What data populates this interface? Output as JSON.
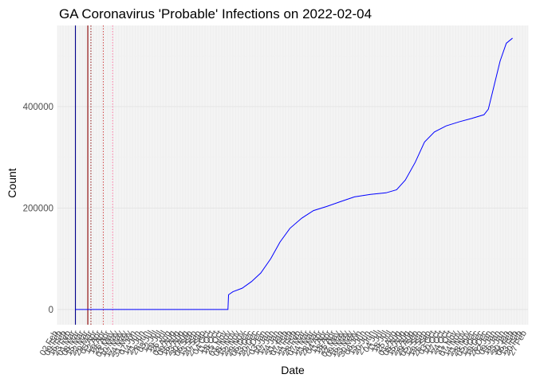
{
  "chart_data": {
    "type": "line",
    "title": "GA Coronavirus 'Probable' Infections on 2022-02-04",
    "xlabel": "Date",
    "ylabel": "Count",
    "xlim": [
      "2020-02-01",
      "2022-03-01"
    ],
    "ylim": [
      -30000,
      560000
    ],
    "y_ticks": [
      0,
      200000,
      400000
    ],
    "x_tick_labels_legible": [
      "02 Feb",
      "28 Feb"
    ],
    "grid": true,
    "grid_minor_x": "daily",
    "series": [
      {
        "color": "#0000ff",
        "points": [
          [
            "2020-03-01",
            0
          ],
          [
            "2020-06-01",
            0
          ],
          [
            "2020-09-01",
            0
          ],
          [
            "2020-11-02",
            0
          ],
          [
            "2020-11-03",
            29000
          ],
          [
            "2020-11-10",
            35000
          ],
          [
            "2020-11-25",
            42000
          ],
          [
            "2020-12-10",
            55000
          ],
          [
            "2020-12-25",
            72000
          ],
          [
            "2021-01-10",
            100000
          ],
          [
            "2021-01-25",
            133000
          ],
          [
            "2021-02-10",
            160000
          ],
          [
            "2021-03-01",
            180000
          ],
          [
            "2021-03-20",
            195000
          ],
          [
            "2021-04-10",
            203000
          ],
          [
            "2021-05-01",
            212000
          ],
          [
            "2021-05-25",
            222000
          ],
          [
            "2021-06-20",
            227000
          ],
          [
            "2021-07-15",
            230000
          ],
          [
            "2021-08-01",
            236000
          ],
          [
            "2021-08-15",
            255000
          ],
          [
            "2021-08-31",
            290000
          ],
          [
            "2021-09-15",
            330000
          ],
          [
            "2021-10-01",
            350000
          ],
          [
            "2021-10-20",
            362000
          ],
          [
            "2021-11-10",
            370000
          ],
          [
            "2021-12-01",
            377000
          ],
          [
            "2021-12-20",
            384000
          ],
          [
            "2021-12-27",
            395000
          ],
          [
            "2022-01-05",
            440000
          ],
          [
            "2022-01-15",
            490000
          ],
          [
            "2022-01-25",
            525000
          ],
          [
            "2022-02-04",
            535000
          ]
        ]
      }
    ],
    "vertical_lines": [
      {
        "x": "2020-03-01",
        "color": "#00008b",
        "style": "solid"
      },
      {
        "x": "2020-03-21",
        "color": "#8b0000",
        "style": "solid"
      },
      {
        "x": "2020-03-26",
        "color": "#8b0000",
        "style": "dotted"
      },
      {
        "x": "2020-04-15",
        "color": "#cc3333",
        "style": "dotted"
      },
      {
        "x": "2020-04-30",
        "color": "#ff6699",
        "style": "dotted"
      }
    ]
  }
}
